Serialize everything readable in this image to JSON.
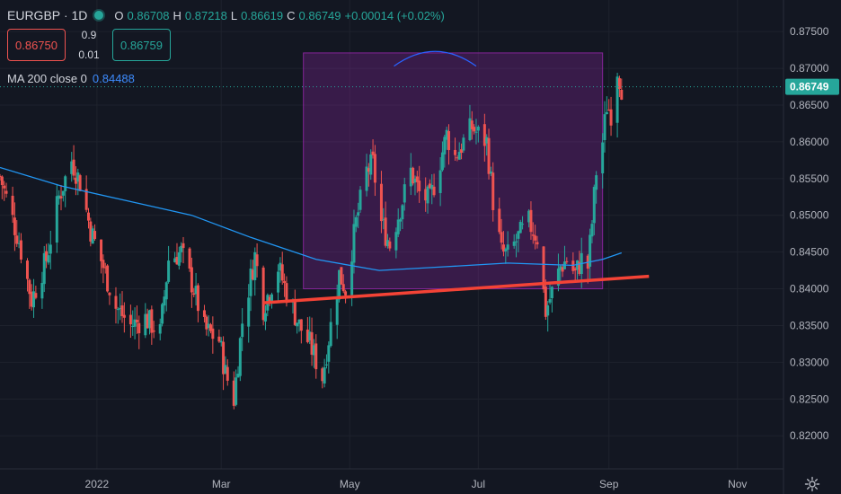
{
  "header": {
    "symbol": "EURGBP",
    "interval": "1D",
    "o_label": "O",
    "o": "0.86708",
    "h_label": "H",
    "h": "0.87218",
    "l_label": "L",
    "l": "0.86619",
    "c_label": "C",
    "c": "0.86749",
    "change": "+0.00014 (+0.02%)"
  },
  "trade": {
    "sell": "0.86750",
    "spread_top": "0.9",
    "spread_bottom": "0.01",
    "buy": "0.86759"
  },
  "indicator": {
    "name": "MA 200 close 0",
    "value": "0.84488"
  },
  "colors": {
    "background": "#131722",
    "up": "#26a69a",
    "down": "#ef5350",
    "ma": "#2196f3",
    "box": "#9c27b0",
    "trendline": "#f44336",
    "arc": "#2962ff"
  },
  "icons": {
    "settings": "gear-icon"
  },
  "chart_data": {
    "type": "candlestick",
    "symbol": "EURGBP",
    "interval": "1D",
    "current_price": "0.86749",
    "y_ticks": [
      "0.87500",
      "0.87000",
      "0.86500",
      "0.86000",
      "0.85500",
      "0.85000",
      "0.84500",
      "0.84000",
      "0.83500",
      "0.83000",
      "0.82500",
      "0.82000"
    ],
    "ylim": [
      0.8155,
      0.8793
    ],
    "x_ticks": [
      "2022",
      "Mar",
      "May",
      "Jul",
      "Sep",
      "Nov"
    ],
    "x_tick_dates": [
      "2022-01-01",
      "2022-03-01",
      "2022-05-01",
      "2022-07-01",
      "2022-09-01",
      "2022-11-01"
    ],
    "xlim": [
      "2021-11-16",
      "2022-11-22"
    ],
    "last_date": "2022-09-07",
    "close_path": [
      [
        "2021-11-16",
        0.8553
      ],
      [
        "2021-11-25",
        0.8465
      ],
      [
        "2021-12-01",
        0.8385
      ],
      [
        "2021-12-08",
        0.844
      ],
      [
        "2021-12-14",
        0.8525
      ],
      [
        "2021-12-20",
        0.8575
      ],
      [
        "2021-12-24",
        0.8545
      ],
      [
        "2021-12-29",
        0.848
      ],
      [
        "2022-01-04",
        0.843
      ],
      [
        "2022-01-10",
        0.8375
      ],
      [
        "2022-01-17",
        0.835
      ],
      [
        "2022-01-24",
        0.836
      ],
      [
        "2022-01-31",
        0.834
      ],
      [
        "2022-02-04",
        0.844
      ],
      [
        "2022-02-10",
        0.845
      ],
      [
        "2022-02-16",
        0.84
      ],
      [
        "2022-02-21",
        0.8345
      ],
      [
        "2022-02-28",
        0.833
      ],
      [
        "2022-03-03",
        0.8285
      ],
      [
        "2022-03-07",
        0.825
      ],
      [
        "2022-03-11",
        0.8355
      ],
      [
        "2022-03-17",
        0.8445
      ],
      [
        "2022-03-21",
        0.8375
      ],
      [
        "2022-03-28",
        0.843
      ],
      [
        "2022-04-01",
        0.8395
      ],
      [
        "2022-04-07",
        0.835
      ],
      [
        "2022-04-12",
        0.8325
      ],
      [
        "2022-04-18",
        0.828
      ],
      [
        "2022-04-22",
        0.835
      ],
      [
        "2022-04-26",
        0.842
      ],
      [
        "2022-04-29",
        0.84
      ],
      [
        "2022-05-04",
        0.849
      ],
      [
        "2022-05-09",
        0.856
      ],
      [
        "2022-05-12",
        0.857
      ],
      [
        "2022-05-16",
        0.849
      ],
      [
        "2022-05-20",
        0.846
      ],
      [
        "2022-05-25",
        0.851
      ],
      [
        "2022-05-30",
        0.856
      ],
      [
        "2022-06-03",
        0.853
      ],
      [
        "2022-06-08",
        0.852
      ],
      [
        "2022-06-13",
        0.8575
      ],
      [
        "2022-06-16",
        0.861
      ],
      [
        "2022-06-20",
        0.858
      ],
      [
        "2022-06-24",
        0.86
      ],
      [
        "2022-06-28",
        0.862
      ],
      [
        "2022-07-01",
        0.861
      ],
      [
        "2022-07-05",
        0.86
      ],
      [
        "2022-07-08",
        0.852
      ],
      [
        "2022-07-12",
        0.845
      ],
      [
        "2022-07-15",
        0.8445
      ],
      [
        "2022-07-20",
        0.847
      ],
      [
        "2022-07-25",
        0.849
      ],
      [
        "2022-07-29",
        0.847
      ],
      [
        "2022-08-02",
        0.837
      ],
      [
        "2022-08-05",
        0.8395
      ],
      [
        "2022-08-09",
        0.843
      ],
      [
        "2022-08-12",
        0.844
      ],
      [
        "2022-08-16",
        0.842
      ],
      [
        "2022-08-19",
        0.844
      ],
      [
        "2022-08-22",
        0.843
      ],
      [
        "2022-08-24",
        0.849
      ],
      [
        "2022-08-26",
        0.856
      ],
      [
        "2022-08-29",
        0.86
      ],
      [
        "2022-08-31",
        0.865
      ],
      [
        "2022-09-02",
        0.864
      ],
      [
        "2022-09-05",
        0.87
      ],
      [
        "2022-09-07",
        0.8675
      ]
    ],
    "ma200": [
      [
        "2021-11-16",
        0.8565
      ],
      [
        "2021-12-15",
        0.854
      ],
      [
        "2022-01-15",
        0.852
      ],
      [
        "2022-02-15",
        0.85
      ],
      [
        "2022-03-15",
        0.847
      ],
      [
        "2022-04-15",
        0.844
      ],
      [
        "2022-05-15",
        0.8425
      ],
      [
        "2022-06-15",
        0.843
      ],
      [
        "2022-07-15",
        0.8435
      ],
      [
        "2022-08-15",
        0.8432
      ],
      [
        "2022-08-29",
        0.844
      ],
      [
        "2022-09-07",
        0.8449
      ]
    ],
    "drawings": {
      "rectangle": {
        "start": "2022-04-09",
        "end": "2022-08-29",
        "top": 0.8721,
        "bottom": 0.84
      },
      "trendline": {
        "start": "2022-03-21",
        "end": "2022-09-20",
        "start_price": 0.8381,
        "end_price": 0.8417
      },
      "arc": {
        "start": "2022-05-22",
        "end": "2022-06-30",
        "base": 0.8703,
        "peak": 0.8723
      }
    }
  }
}
